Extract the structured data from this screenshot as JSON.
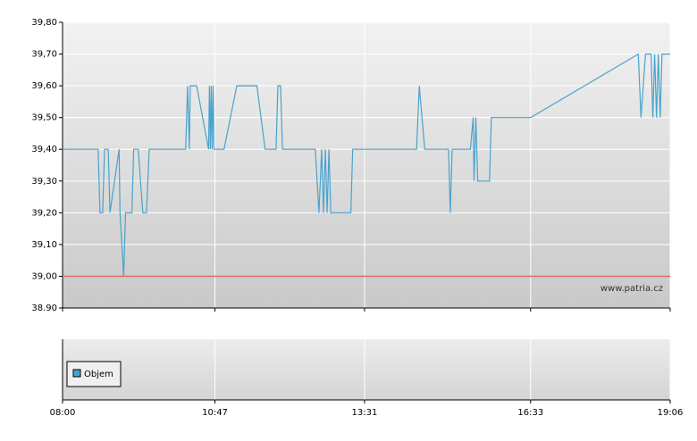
{
  "chart_data": {
    "type": "line",
    "x": [
      "08:00",
      "08:39",
      "08:41",
      "08:44",
      "08:46",
      "08:50",
      "08:52",
      "09:02",
      "09:03",
      "09:07",
      "09:09",
      "09:16",
      "09:18",
      "09:23",
      "09:28",
      "09:32",
      "09:35",
      "10:15",
      "10:17",
      "10:19",
      "10:20",
      "10:27",
      "10:40",
      "10:41",
      "10:42",
      "10:43",
      "10:44",
      "10:45",
      "10:46",
      "10:57",
      "11:11",
      "11:33",
      "11:42",
      "11:54",
      "11:56",
      "11:59",
      "12:01",
      "12:37",
      "12:41",
      "12:44",
      "12:46",
      "12:48",
      "12:50",
      "12:52",
      "12:54",
      "13:16",
      "13:18",
      "14:28",
      "14:31",
      "14:37",
      "15:03",
      "15:05",
      "15:07",
      "15:27",
      "15:30",
      "15:31",
      "15:33",
      "15:35",
      "15:48",
      "15:50",
      "16:33",
      "18:31",
      "18:34",
      "18:39",
      "18:45",
      "18:47",
      "18:49",
      "18:51",
      "18:53",
      "18:55",
      "18:57",
      "18:59",
      "19:01",
      "19:06"
    ],
    "series": [
      {
        "color": "#4aa3cc",
        "values": [
          39.4,
          39.4,
          39.2,
          39.2,
          39.4,
          39.4,
          39.2,
          39.4,
          39.2,
          39.0,
          39.2,
          39.2,
          39.4,
          39.4,
          39.2,
          39.2,
          39.4,
          39.4,
          39.6,
          39.4,
          39.6,
          39.6,
          39.4,
          39.6,
          39.4,
          39.6,
          39.4,
          39.6,
          39.4,
          39.4,
          39.6,
          39.6,
          39.4,
          39.4,
          39.6,
          39.6,
          39.4,
          39.4,
          39.2,
          39.4,
          39.2,
          39.4,
          39.2,
          39.4,
          39.2,
          39.2,
          39.4,
          39.4,
          39.6,
          39.4,
          39.4,
          39.2,
          39.4,
          39.4,
          39.5,
          39.3,
          39.5,
          39.3,
          39.3,
          39.5,
          39.5,
          39.7,
          39.5,
          39.7,
          39.7,
          39.5,
          39.7,
          39.5,
          39.7,
          39.5,
          39.7,
          39.7,
          39.7,
          39.7
        ]
      }
    ],
    "xlim": [
      "08:00",
      "19:06"
    ],
    "xticks": [
      "08:00",
      "10:47",
      "13:31",
      "16:33",
      "19:06"
    ],
    "ylim": [
      38.9,
      39.8
    ],
    "yticks": [
      {
        "value": 38.9,
        "label": "38.90"
      },
      {
        "value": 39.0,
        "label": "39,00"
      },
      {
        "value": 39.1,
        "label": "39,10"
      },
      {
        "value": 39.2,
        "label": "39,20"
      },
      {
        "value": 39.3,
        "label": "39,30"
      },
      {
        "value": 39.4,
        "label": "39,40"
      },
      {
        "value": 39.5,
        "label": "39,50"
      },
      {
        "value": 39.6,
        "label": "39,60"
      },
      {
        "value": 39.7,
        "label": "39,70"
      },
      {
        "value": 39.8,
        "label": "39,80"
      }
    ],
    "reference_line": {
      "value": 39.0,
      "color": "#e06a6a"
    },
    "grid": true,
    "watermark": "www.patria.cz",
    "volume_legend": "Objem",
    "volume_color": "#4aa3cc"
  }
}
